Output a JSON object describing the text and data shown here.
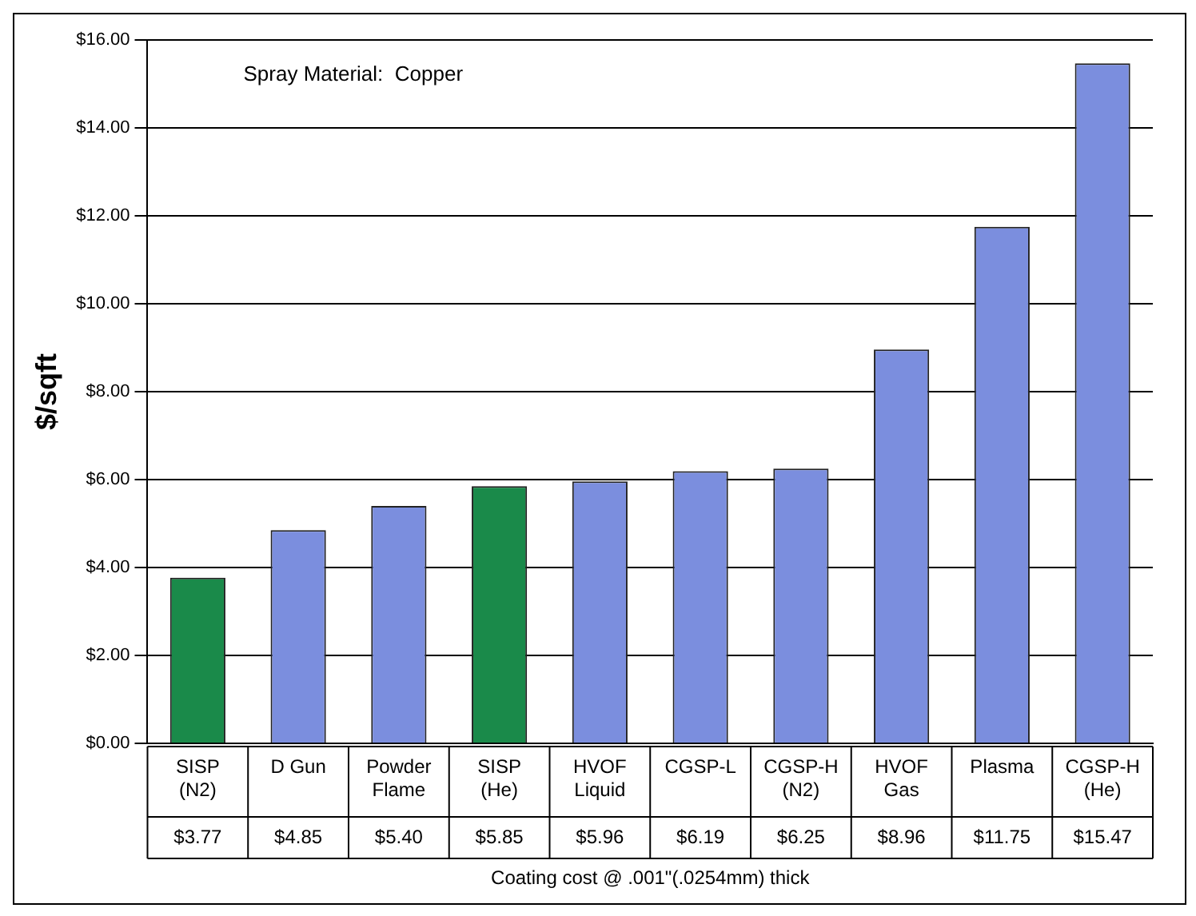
{
  "chart_data": {
    "type": "bar",
    "ylabel": "$/sqft",
    "xlabel": "Coating cost @ .001\"(.0254mm) thick",
    "annotations": [
      "Spray Material:  Copper"
    ],
    "categories": [
      "SISP\n(N2)",
      "D Gun",
      "Powder\nFlame",
      "SISP\n(He)",
      "HVOF\nLiquid",
      "CGSP-L",
      "CGSP-H\n(N2)",
      "HVOF\nGas",
      "Plasma",
      "CGSP-H\n(He)"
    ],
    "values": [
      3.77,
      4.85,
      5.4,
      5.85,
      5.96,
      6.19,
      6.25,
      8.96,
      11.75,
      15.47
    ],
    "colors": [
      "#1a8a4a",
      "#7b8ede",
      "#7b8ede",
      "#1a8a4a",
      "#7b8ede",
      "#7b8ede",
      "#7b8ede",
      "#7b8ede",
      "#7b8ede",
      "#7b8ede"
    ],
    "value_labels": [
      "$3.77",
      "$4.85",
      "$5.40",
      "$5.85",
      "$5.96",
      "$6.19",
      "$6.25",
      "$8.96",
      "$11.75",
      "$15.47"
    ],
    "ylim": [
      0,
      16
    ],
    "yticks": [
      {
        "value": 0,
        "label": "$0.00"
      },
      {
        "value": 2,
        "label": "$2.00"
      },
      {
        "value": 4,
        "label": "$4.00"
      },
      {
        "value": 6,
        "label": "$6.00"
      },
      {
        "value": 8,
        "label": "$8.00"
      },
      {
        "value": 10,
        "label": "$10.00"
      },
      {
        "value": 12,
        "label": "$12.00"
      },
      {
        "value": 14,
        "label": "$14.00"
      },
      {
        "value": 16,
        "label": "$16.00"
      }
    ],
    "grid": "y"
  }
}
